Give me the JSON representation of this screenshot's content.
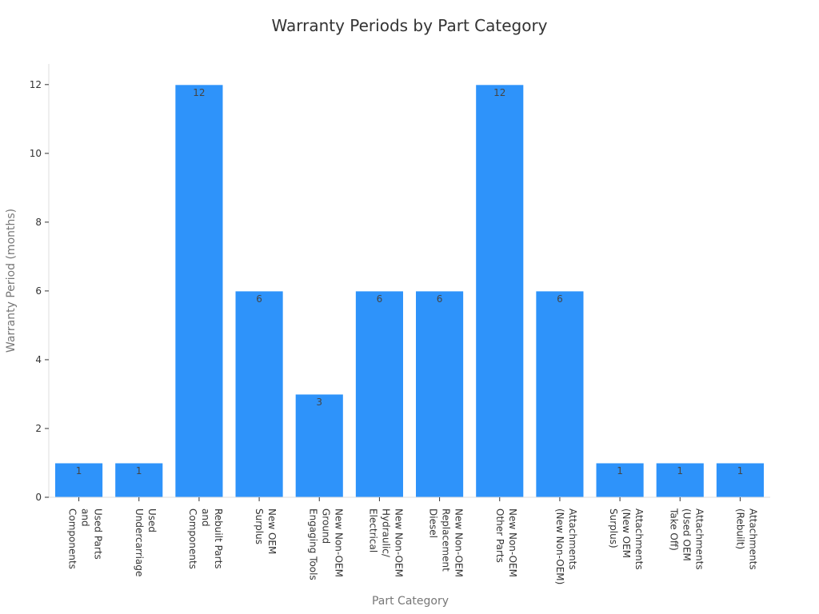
{
  "chart_data": {
    "type": "bar",
    "title": "Warranty Periods by Part Category",
    "xlabel": "Part Category",
    "ylabel": "Warranty Period (months)",
    "categories": [
      "Used Parts and Components",
      "Used Undercarriage",
      "Rebuilt Parts and Components",
      "New OEM Surplus",
      "New Non-OEM Ground Engaging Tools",
      "New Non-OEM Hydraulic/ Electrical",
      "New Non-OEM Replacement Diesel",
      "New Non-OEM Other Parts",
      "Attachments (New Non-OEM)",
      "Attachments (New OEM Surplus)",
      "Attachments (Used OEM Take Off)",
      "Attachments (Rebuilt)"
    ],
    "category_lines": [
      [
        "Used Parts",
        "and",
        "Components"
      ],
      [
        "Used",
        "Undercarriage"
      ],
      [
        "Rebuilt Parts",
        "and",
        "Components"
      ],
      [
        "New OEM",
        "Surplus"
      ],
      [
        "New Non-OEM",
        "Ground",
        "Engaging Tools"
      ],
      [
        "New Non-OEM",
        "Hydraulic/",
        "Electrical"
      ],
      [
        "New Non-OEM",
        "Replacement",
        "Diesel"
      ],
      [
        "New Non-OEM",
        "Other Parts"
      ],
      [
        "Attachments",
        "(New Non-OEM)"
      ],
      [
        "Attachments",
        "(New OEM",
        "Surplus)"
      ],
      [
        "Attachments",
        "(Used OEM",
        "Take Off)"
      ],
      [
        "Attachments",
        "(Rebuilt)"
      ]
    ],
    "values": [
      1,
      1,
      12,
      6,
      3,
      6,
      6,
      12,
      6,
      1,
      1,
      1
    ],
    "ylim": [
      0,
      12.6
    ],
    "yticks": [
      0,
      2,
      4,
      6,
      8,
      10,
      12
    ],
    "grid": false,
    "bar_color": "#2e93fa",
    "show_data_labels": true
  }
}
